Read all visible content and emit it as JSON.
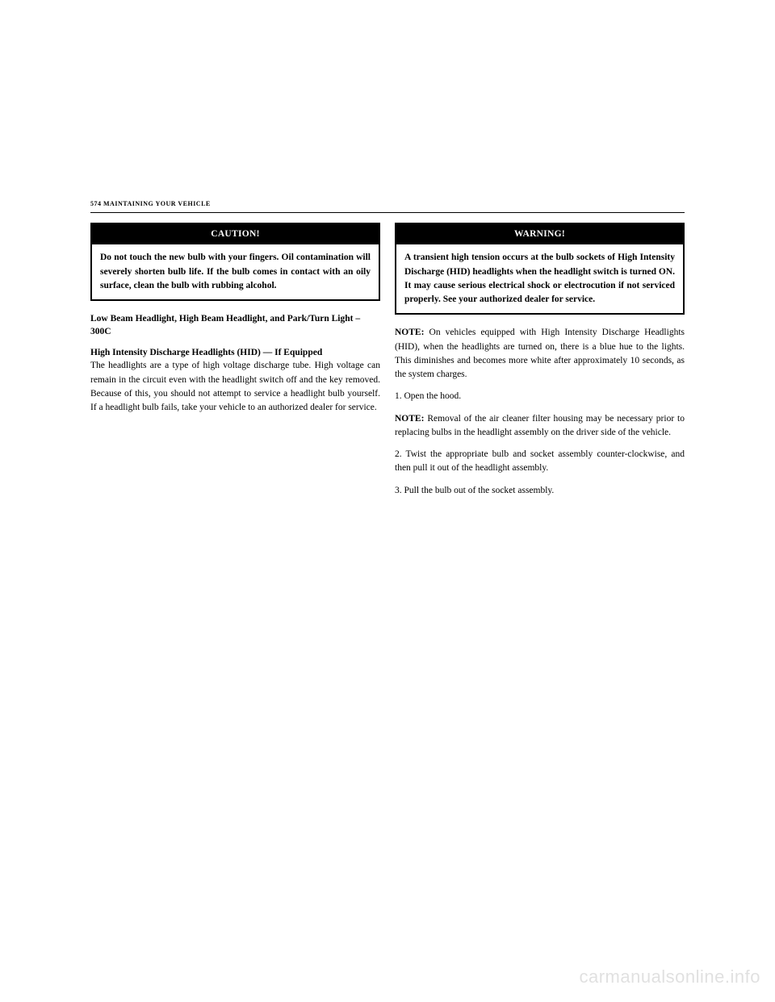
{
  "pageHeader": "574   MAINTAINING YOUR VEHICLE",
  "leftColumn": {
    "caution": {
      "title": "CAUTION!",
      "body": "Do not touch the new bulb with your fingers. Oil contamination will severely shorten bulb life. If the bulb comes in contact with an oily surface, clean the bulb with rubbing alcohol."
    },
    "heading1": "Low Beam Headlight, High Beam Headlight, and Park/Turn Light – 300C",
    "heading2": "High Intensity Discharge Headlights (HID) — If Equipped",
    "paragraph1": "The headlights are a type of high voltage discharge tube. High voltage can remain in the circuit even with the headlight switch off and the key removed. Because of this, you should not attempt to service a headlight bulb yourself. If a headlight bulb fails, take your vehicle to an authorized dealer for service."
  },
  "rightColumn": {
    "warning": {
      "title": "WARNING!",
      "body": "A transient high tension occurs at the bulb sockets of High Intensity Discharge (HID) headlights when the headlight switch is turned ON. It may cause serious electrical shock or electrocution if not serviced properly. See your authorized dealer for service."
    },
    "noteLabel1": "NOTE:",
    "note1": " On vehicles equipped with High Intensity Discharge Headlights (HID), when the headlights are turned on, there is a blue hue to the lights. This diminishes and becomes more white after approximately 10 seconds, as the system charges.",
    "step1": "1. Open the hood.",
    "noteLabel2": "NOTE:",
    "note2": " Removal of the air cleaner filter housing may be necessary prior to replacing bulbs in the headlight assembly on the driver side of the vehicle.",
    "step2": "2. Twist the appropriate bulb and socket assembly counter-clockwise, and then pull it out of the headlight assembly.",
    "step3": "3. Pull the bulb out of the socket assembly."
  },
  "watermark": "carmanualsonline.info"
}
